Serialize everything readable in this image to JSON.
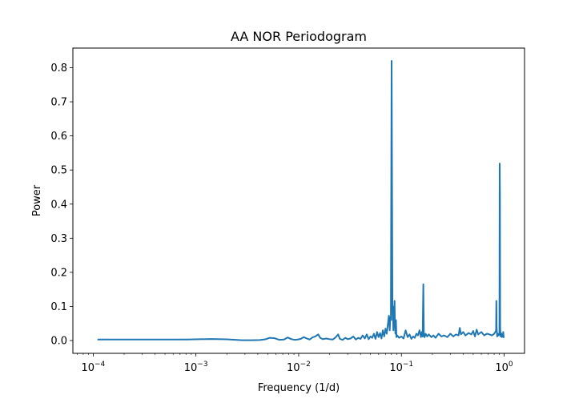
{
  "chart_data": {
    "type": "line",
    "title": "AA NOR Periodogram",
    "xlabel": "Frequency (1/d)",
    "ylabel": "Power",
    "xscale": "log",
    "xlim": [
      6.34e-05,
      1.58
    ],
    "ylim": [
      -0.0375,
      0.8575
    ],
    "grid": false,
    "legend": "none",
    "x_ticks": [
      {
        "value": 0.0001,
        "base": "10",
        "exp": "−4"
      },
      {
        "value": 0.001,
        "base": "10",
        "exp": "−3"
      },
      {
        "value": 0.01,
        "base": "10",
        "exp": "−2"
      },
      {
        "value": 0.1,
        "base": "10",
        "exp": "−1"
      },
      {
        "value": 1,
        "base": "10",
        "exp": "0"
      }
    ],
    "y_ticks": [
      {
        "value": 0.0,
        "label": "0.0"
      },
      {
        "value": 0.1,
        "label": "0.1"
      },
      {
        "value": 0.2,
        "label": "0.2"
      },
      {
        "value": 0.3,
        "label": "0.3"
      },
      {
        "value": 0.4,
        "label": "0.4"
      },
      {
        "value": 0.5,
        "label": "0.5"
      },
      {
        "value": 0.6,
        "label": "0.6"
      },
      {
        "value": 0.7,
        "label": "0.7"
      },
      {
        "value": 0.8,
        "label": "0.8"
      }
    ],
    "series": [
      {
        "color": "#1f77b4",
        "x": [
          0.00011,
          0.0003,
          0.0008,
          0.0014,
          0.002,
          0.0028,
          0.0035,
          0.0042,
          0.0048,
          0.0052,
          0.0058,
          0.0065,
          0.0072,
          0.0078,
          0.0085,
          0.0092,
          0.0098,
          0.0105,
          0.0112,
          0.012,
          0.0128,
          0.0136,
          0.0145,
          0.0155,
          0.0162,
          0.0172,
          0.0185,
          0.02,
          0.0215,
          0.023,
          0.0242,
          0.0252,
          0.0268,
          0.0285,
          0.03,
          0.032,
          0.034,
          0.036,
          0.038,
          0.04,
          0.042,
          0.044,
          0.046,
          0.048,
          0.05,
          0.052,
          0.054,
          0.056,
          0.058,
          0.06,
          0.062,
          0.064,
          0.066,
          0.068,
          0.07,
          0.072,
          0.074,
          0.0755,
          0.077,
          0.078,
          0.079,
          0.0803,
          0.0812,
          0.0818,
          0.0823,
          0.0829,
          0.0835,
          0.0842,
          0.085,
          0.0858,
          0.0866,
          0.0875,
          0.0885,
          0.0895,
          0.091,
          0.095,
          0.1,
          0.105,
          0.11,
          0.115,
          0.12,
          0.125,
          0.13,
          0.135,
          0.14,
          0.145,
          0.15,
          0.155,
          0.158,
          0.161,
          0.1635,
          0.1645,
          0.1655,
          0.168,
          0.172,
          0.178,
          0.185,
          0.195,
          0.205,
          0.215,
          0.23,
          0.245,
          0.26,
          0.28,
          0.3,
          0.32,
          0.34,
          0.36,
          0.37,
          0.38,
          0.4,
          0.42,
          0.45,
          0.48,
          0.5,
          0.52,
          0.54,
          0.56,
          0.6,
          0.64,
          0.68,
          0.72,
          0.76,
          0.8,
          0.82,
          0.835,
          0.84,
          0.845,
          0.855,
          0.87,
          0.885,
          0.9,
          0.905,
          0.91,
          0.915,
          0.92,
          0.925,
          0.93,
          0.935,
          0.94,
          0.95,
          0.96,
          0.97,
          0.98,
          0.99,
          1.0
        ],
        "y": [
          0.003,
          0.003,
          0.003,
          0.0045,
          0.0035,
          0.001,
          0.001,
          0.0015,
          0.004,
          0.008,
          0.007,
          0.002,
          0.003,
          0.009,
          0.004,
          0.002,
          0.003,
          0.005,
          0.01,
          0.006,
          0.003,
          0.009,
          0.012,
          0.018,
          0.008,
          0.004,
          0.006,
          0.004,
          0.003,
          0.01,
          0.018,
          0.005,
          0.002,
          0.008,
          0.004,
          0.006,
          0.012,
          0.003,
          0.008,
          0.005,
          0.015,
          0.006,
          0.018,
          0.004,
          0.012,
          0.008,
          0.02,
          0.005,
          0.025,
          0.01,
          0.022,
          0.006,
          0.03,
          0.012,
          0.035,
          0.02,
          0.05,
          0.073,
          0.03,
          0.068,
          0.06,
          0.82,
          0.4,
          0.1,
          0.06,
          0.08,
          0.03,
          0.1,
          0.055,
          0.116,
          0.04,
          0.02,
          0.06,
          0.01,
          0.015,
          0.008,
          0.012,
          0.006,
          0.03,
          0.01,
          0.018,
          0.005,
          0.012,
          0.008,
          0.02,
          0.015,
          0.03,
          0.01,
          0.025,
          0.012,
          0.165,
          0.08,
          0.015,
          0.01,
          0.02,
          0.012,
          0.018,
          0.01,
          0.015,
          0.008,
          0.02,
          0.012,
          0.015,
          0.01,
          0.02,
          0.012,
          0.018,
          0.015,
          0.037,
          0.018,
          0.025,
          0.015,
          0.022,
          0.018,
          0.028,
          0.012,
          0.032,
          0.018,
          0.025,
          0.015,
          0.02,
          0.018,
          0.015,
          0.02,
          0.025,
          0.03,
          0.116,
          0.04,
          0.012,
          0.02,
          0.015,
          0.018,
          0.519,
          0.43,
          0.04,
          0.02,
          0.012,
          0.022,
          0.015,
          0.02,
          0.01,
          0.018,
          0.012,
          0.025,
          0.01,
          0.008
        ]
      }
    ]
  }
}
